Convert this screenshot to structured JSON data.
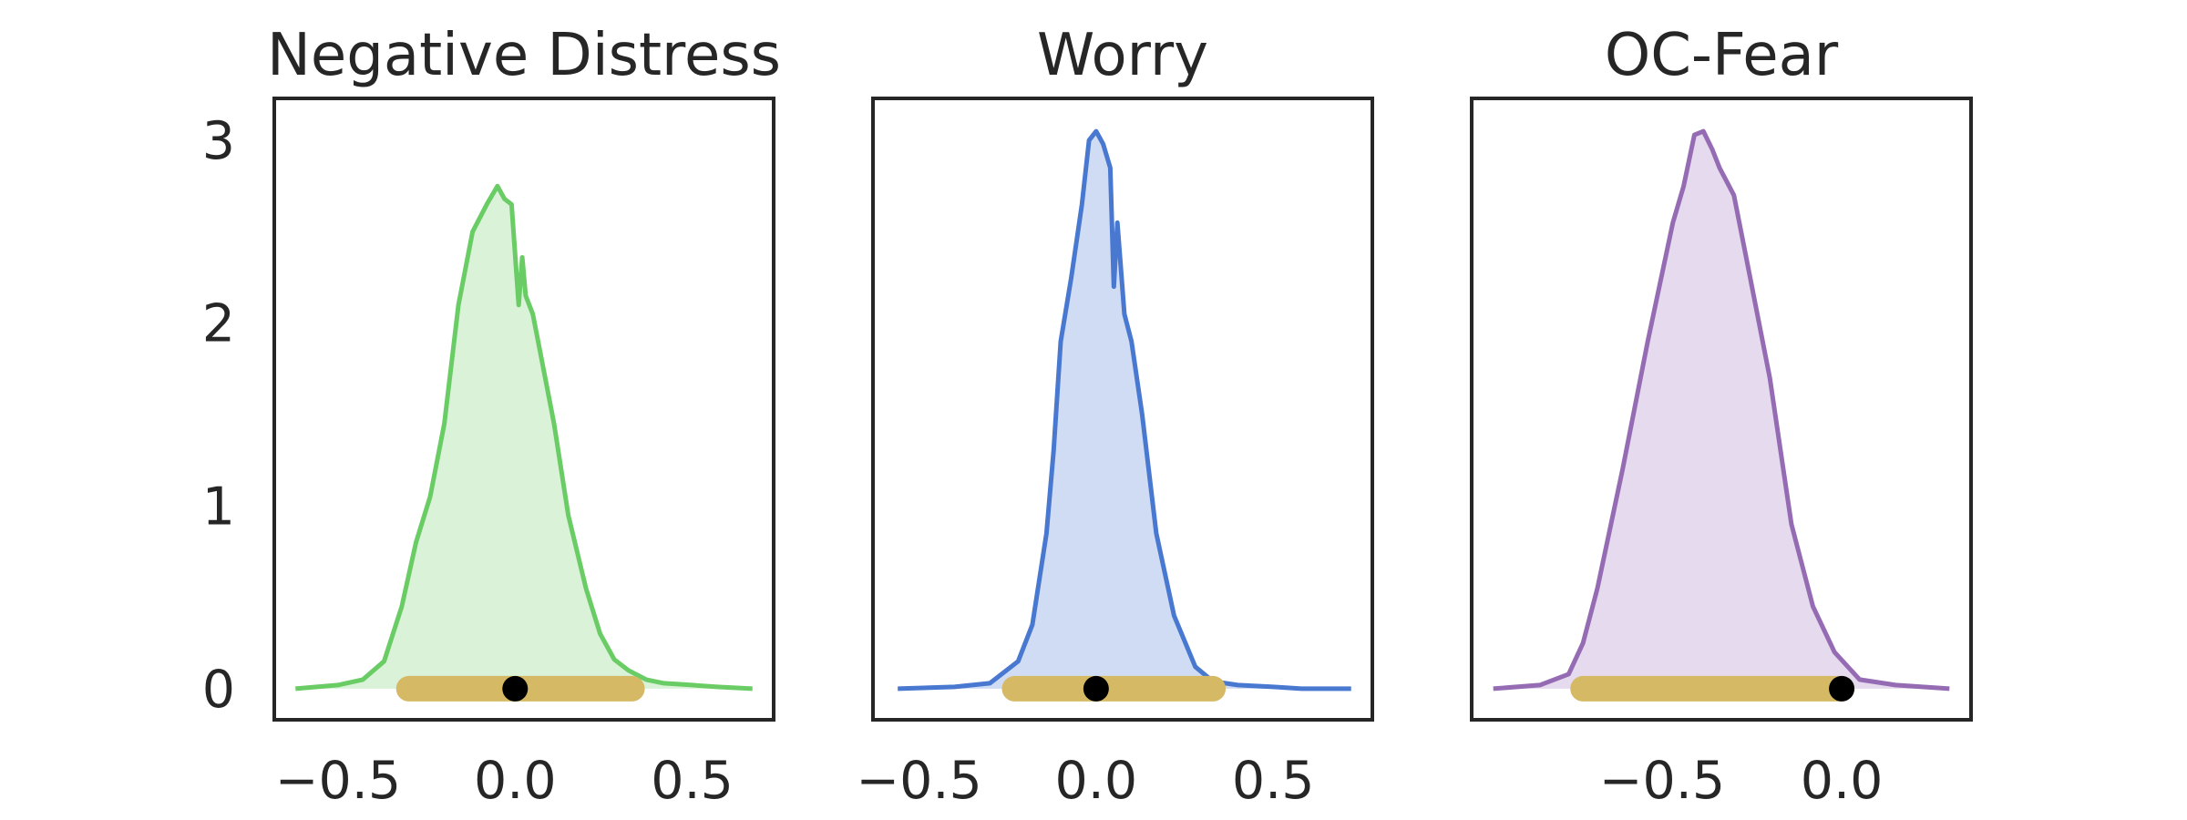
{
  "chart_data": [
    {
      "type": "area",
      "title": "Negative Distress",
      "color": "#6acc64",
      "fill": "#d9f2d8",
      "interval_color": "#d5b964",
      "point_color": "#000000",
      "xlim": [
        -0.68,
        0.73
      ],
      "ylim": [
        -0.17,
        3.23
      ],
      "xticks": [
        {
          "value": -0.5,
          "label": "−0.5"
        },
        {
          "value": 0.0,
          "label": "0.0"
        },
        {
          "value": 0.5,
          "label": "0.5"
        }
      ],
      "yticks": [
        {
          "value": 0,
          "label": "0"
        },
        {
          "value": 1,
          "label": "1"
        },
        {
          "value": 2,
          "label": "2"
        },
        {
          "value": 3,
          "label": "3"
        }
      ],
      "grid": false,
      "density": {
        "x": [
          -0.62,
          -0.5,
          -0.43,
          -0.37,
          -0.32,
          -0.28,
          -0.24,
          -0.2,
          -0.16,
          -0.12,
          -0.08,
          -0.05,
          -0.03,
          -0.01,
          0.01,
          0.02,
          0.03,
          0.05,
          0.07,
          0.11,
          0.15,
          0.2,
          0.24,
          0.28,
          0.32,
          0.37,
          0.42,
          0.5,
          0.57,
          0.67
        ],
        "y": [
          0.0,
          0.02,
          0.05,
          0.15,
          0.45,
          0.8,
          1.05,
          1.45,
          2.1,
          2.5,
          2.65,
          2.75,
          2.68,
          2.65,
          2.1,
          2.36,
          2.15,
          2.05,
          1.85,
          1.45,
          0.95,
          0.55,
          0.3,
          0.16,
          0.1,
          0.05,
          0.03,
          0.02,
          0.01,
          0.0
        ]
      },
      "interval": [
        -0.3,
        0.33
      ],
      "point": 0.0
    },
    {
      "type": "area",
      "title": "Worry",
      "color": "#4878d0",
      "fill": "#cfdcf3",
      "interval_color": "#d5b964",
      "point_color": "#000000",
      "xlim": [
        -0.63,
        0.78
      ],
      "ylim": [
        -0.17,
        3.23
      ],
      "xticks": [
        {
          "value": -0.5,
          "label": "−0.5"
        },
        {
          "value": 0.0,
          "label": "0.0"
        },
        {
          "value": 0.5,
          "label": "0.5"
        }
      ],
      "yticks": [],
      "grid": false,
      "density": {
        "x": [
          -0.56,
          -0.4,
          -0.3,
          -0.22,
          -0.18,
          -0.14,
          -0.12,
          -0.1,
          -0.07,
          -0.04,
          -0.02,
          0.0,
          0.02,
          0.04,
          0.05,
          0.06,
          0.08,
          0.1,
          0.13,
          0.17,
          0.22,
          0.28,
          0.33,
          0.4,
          0.5,
          0.58,
          0.72
        ],
        "y": [
          0.0,
          0.01,
          0.03,
          0.15,
          0.35,
          0.85,
          1.3,
          1.9,
          2.25,
          2.65,
          3.0,
          3.05,
          2.98,
          2.85,
          2.2,
          2.55,
          2.05,
          1.9,
          1.5,
          0.85,
          0.4,
          0.12,
          0.04,
          0.02,
          0.01,
          0.0,
          0.0
        ]
      },
      "interval": [
        -0.23,
        0.33
      ],
      "point": 0.0
    },
    {
      "type": "area",
      "title": "OC-Fear",
      "color": "#956cb4",
      "fill": "#e6daee",
      "interval_color": "#d5b964",
      "point_color": "#000000",
      "xlim": [
        -1.03,
        0.36
      ],
      "ylim": [
        -0.17,
        3.23
      ],
      "xticks": [
        {
          "value": -0.5,
          "label": "−0.5"
        },
        {
          "value": 0.0,
          "label": "0.0"
        }
      ],
      "yticks": [],
      "grid": false,
      "density": {
        "x": [
          -0.97,
          -0.84,
          -0.76,
          -0.72,
          -0.68,
          -0.61,
          -0.54,
          -0.47,
          -0.44,
          -0.41,
          -0.385,
          -0.36,
          -0.34,
          -0.3,
          -0.26,
          -0.2,
          -0.14,
          -0.08,
          -0.02,
          0.05,
          0.15,
          0.3
        ],
        "y": [
          0.0,
          0.02,
          0.08,
          0.25,
          0.55,
          1.2,
          1.9,
          2.55,
          2.75,
          3.03,
          3.05,
          2.95,
          2.85,
          2.7,
          2.3,
          1.7,
          0.9,
          0.45,
          0.2,
          0.05,
          0.02,
          0.0
        ]
      },
      "interval": [
        -0.72,
        0.0
      ],
      "point": 0.0
    }
  ]
}
